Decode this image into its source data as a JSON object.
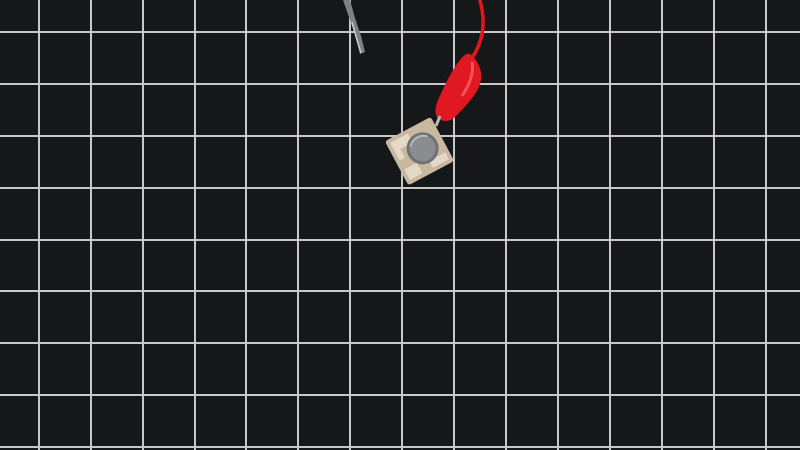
{
  "scene": {
    "background_color": "#151719",
    "grid_color": "#e6e8ea",
    "wire_color": "#e8141c",
    "clip_color": "#e01822",
    "board_color": "#c9b89f",
    "probe_color": "#8c8f92"
  }
}
